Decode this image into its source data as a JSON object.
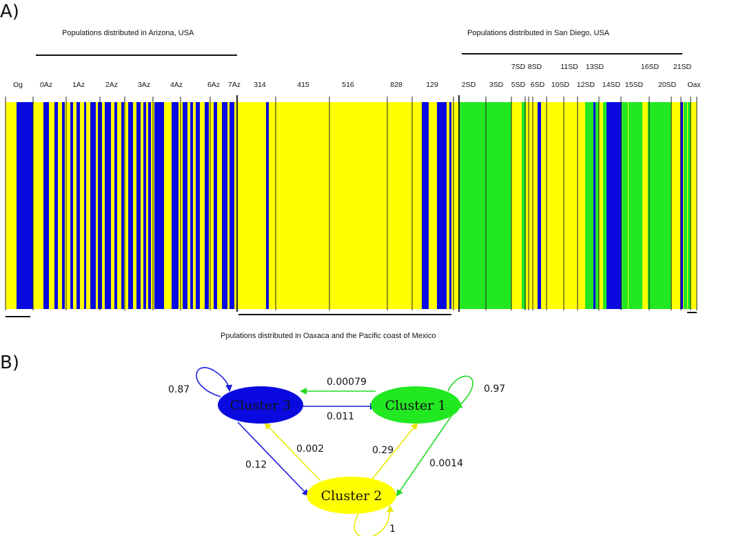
{
  "panel_a": {
    "label": "A)",
    "arizona_label": "Populations distributed in Arizona, USA",
    "sandiego_label": "Populations distributed in San Diego, USA",
    "oaxaca_label": "Ppulations distributed in Oaxaca and the Pacific coast of Mexico",
    "pops_lower": [
      "Og",
      "0Az",
      "1Az",
      "2Az",
      "3Az",
      "4Az",
      "6Az",
      "7Az",
      "314",
      "415",
      "516",
      "828",
      "129",
      "2SD",
      "3SD",
      "5SD",
      "6SD",
      "10SD",
      "12SD",
      "14SD",
      "15SD",
      "20SD",
      "Oax"
    ],
    "pops_upper": [
      "7SD",
      "8SD",
      "11SD",
      "13SD",
      "16SD",
      "21SD"
    ],
    "colors": {
      "cluster1": "#22e822",
      "cluster2": "#ffff00",
      "cluster3": "#0a0ae0"
    }
  },
  "panel_b": {
    "label": "B)",
    "nodes": {
      "c3": "Cluster 3",
      "c1": "Cluster 1",
      "c2": "Cluster 2"
    },
    "edges": {
      "c3_self": "0.87",
      "c1_self": "0.97",
      "c2_self": "1",
      "c1_to_c3": "0.00079",
      "c3_to_c1": "0.011",
      "c3_to_c2": "0.12",
      "c2_to_c3": "0.002",
      "c2_to_c1": "0.29",
      "c1_to_c2": "0.0014"
    }
  }
}
